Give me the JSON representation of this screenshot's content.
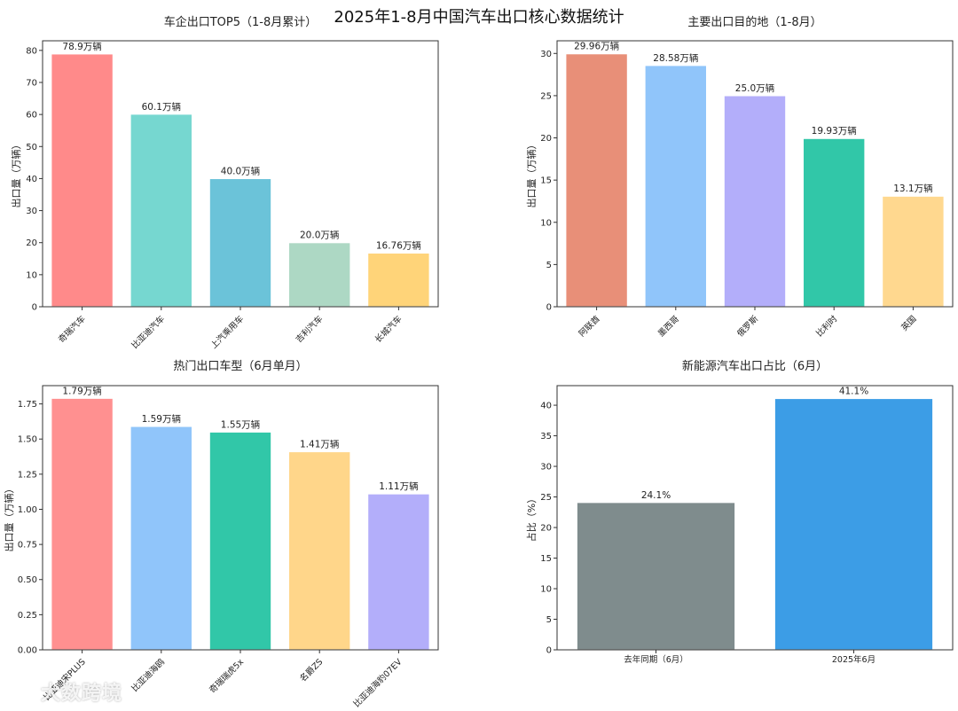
{
  "title": "2025年1-8月中国汽车出口核心数据统计",
  "watermark": "大数跨境",
  "chart_data": [
    {
      "type": "bar",
      "title": "车企出口TOP5（1-8月累计）",
      "ylabel": "出口量（万辆）",
      "xlabel": "",
      "ylim": [
        0,
        83
      ],
      "yticks": [
        0,
        10,
        20,
        30,
        40,
        50,
        60,
        70,
        80
      ],
      "ytick_labels": [
        "0",
        "10",
        "20",
        "30",
        "40",
        "50",
        "60",
        "70",
        "80"
      ],
      "categories": [
        "奇瑞汽车",
        "比亚迪汽车",
        "上汽乘用车",
        "吉利汽车",
        "长城汽车"
      ],
      "values": [
        78.9,
        60.1,
        40.0,
        20.0,
        16.76
      ],
      "labels": [
        "78.9万辆",
        "60.1万辆",
        "40.0万辆",
        "20.0万辆",
        "16.76万辆"
      ],
      "colors": [
        "#ff8a8a",
        "#76d7d0",
        "#6bc3d9",
        "#add8c4",
        "#ffd479"
      ],
      "xtick_rotation": 45
    },
    {
      "type": "bar",
      "title": "主要出口目的地（1-8月）",
      "ylabel": "出口量（万辆）",
      "xlabel": "",
      "ylim": [
        0,
        31.5
      ],
      "yticks": [
        0,
        5,
        10,
        15,
        20,
        25,
        30
      ],
      "ytick_labels": [
        "0",
        "5",
        "10",
        "15",
        "20",
        "25",
        "30"
      ],
      "categories": [
        "阿联酋",
        "墨西哥",
        "俄罗斯",
        "比利时",
        "英国"
      ],
      "values": [
        29.96,
        28.58,
        25.0,
        19.93,
        13.1
      ],
      "labels": [
        "29.96万辆",
        "28.58万辆",
        "25.0万辆",
        "19.93万辆",
        "13.1万辆"
      ],
      "colors": [
        "#e88f78",
        "#90c5fa",
        "#b3aefa",
        "#31c7a8",
        "#ffd88f"
      ],
      "xtick_rotation": 45
    },
    {
      "type": "bar",
      "title": "热门出口车型（6月单月）",
      "ylabel": "出口量（万辆）",
      "xlabel": "",
      "ylim": [
        0,
        1.88
      ],
      "yticks": [
        0,
        0.25,
        0.5,
        0.75,
        1.0,
        1.25,
        1.5,
        1.75
      ],
      "ytick_labels": [
        "0.00",
        "0.25",
        "0.50",
        "0.75",
        "1.00",
        "1.25",
        "1.50",
        "1.75"
      ],
      "categories": [
        "比亚迪宋PLUS",
        "比亚迪海鸥",
        "奇瑞瑞虎5x",
        "名爵ZS",
        "比亚迪海豹07EV"
      ],
      "values": [
        1.79,
        1.59,
        1.55,
        1.41,
        1.11
      ],
      "labels": [
        "1.79万辆",
        "1.59万辆",
        "1.55万辆",
        "1.41万辆",
        "1.11万辆"
      ],
      "colors": [
        "#ff9090",
        "#90c5fa",
        "#31c7a8",
        "#ffd68a",
        "#b3aefa"
      ],
      "xtick_rotation": 45
    },
    {
      "type": "bar",
      "title": "新能源汽车出口占比（6月）",
      "ylabel": "占比（%）",
      "xlabel": "",
      "ylim": [
        0,
        43.2
      ],
      "yticks": [
        0,
        5,
        10,
        15,
        20,
        25,
        30,
        35,
        40
      ],
      "ytick_labels": [
        "0",
        "5",
        "10",
        "15",
        "20",
        "25",
        "30",
        "35",
        "40"
      ],
      "categories": [
        "去年同期（6月）",
        "2025年6月"
      ],
      "values": [
        24.1,
        41.1
      ],
      "labels": [
        "24.1%",
        "41.1%"
      ],
      "colors": [
        "#7f8c8d",
        "#3c9de6"
      ],
      "xtick_rotation": 0
    }
  ]
}
